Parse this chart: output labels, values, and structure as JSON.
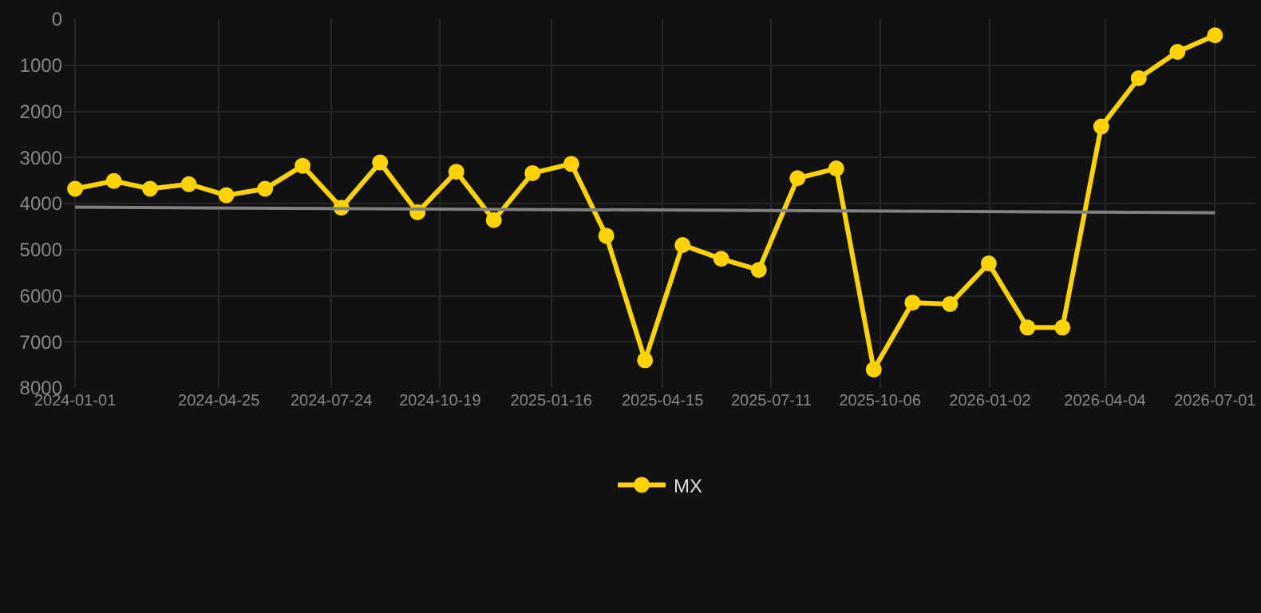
{
  "chart_data": {
    "type": "line",
    "x": [
      "2024-01-01",
      "2024-02-01",
      "2024-03-01",
      "2024-04-01",
      "2024-05-01",
      "2024-06-01",
      "2024-07-01",
      "2024-08-01",
      "2024-09-01",
      "2024-10-01",
      "2024-11-01",
      "2024-12-01",
      "2025-01-01",
      "2025-02-01",
      "2025-03-01",
      "2025-04-01",
      "2025-05-01",
      "2025-06-01",
      "2025-07-01",
      "2025-08-01",
      "2025-09-01",
      "2025-10-01",
      "2025-11-01",
      "2025-12-01",
      "2026-01-01",
      "2026-02-01",
      "2026-03-01",
      "2026-04-01",
      "2026-05-01",
      "2026-06-01",
      "2026-07-01"
    ],
    "series": [
      {
        "name": "MX",
        "color": "#ffd200",
        "marker": "circle",
        "values": [
          3680,
          3510,
          3680,
          3580,
          3820,
          3680,
          3180,
          4090,
          3110,
          4190,
          3310,
          4360,
          3340,
          3140,
          4700,
          7400,
          4900,
          5200,
          5440,
          3450,
          3240,
          7600,
          6150,
          6180,
          5300,
          6690,
          6690,
          2330,
          1280,
          710,
          350
        ]
      },
      {
        "type": "line",
        "color": "#808080",
        "marker": "none",
        "x": [
          "2024-01-01",
          "2026-07-01"
        ],
        "values": [
          4080,
          4200
        ]
      }
    ],
    "xlim": [
      "2023-12-23",
      "2026-08-03"
    ],
    "xticks": [
      "2024-01-01",
      "2024-04-25",
      "2024-07-24",
      "2024-10-19",
      "2025-01-16",
      "2025-04-15",
      "2025-07-11",
      "2025-10-06",
      "2026-01-02",
      "2026-04-04",
      "2026-07-01"
    ],
    "ylim": [
      8000,
      0
    ],
    "yticks": [
      0,
      1000,
      2000,
      3000,
      4000,
      5000,
      6000,
      7000,
      8000
    ],
    "grid": true,
    "legend": "bottom"
  }
}
